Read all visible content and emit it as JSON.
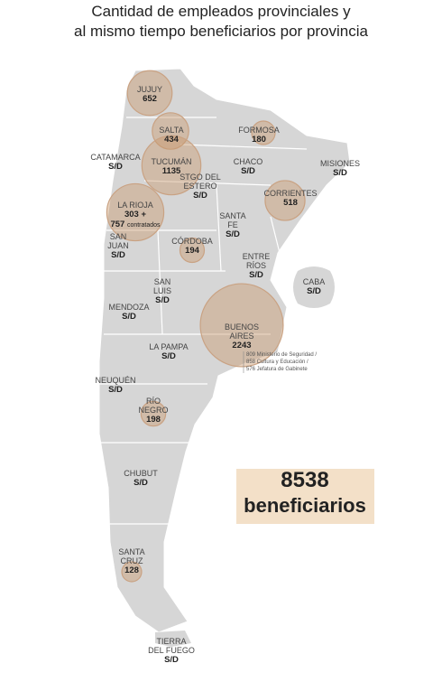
{
  "title": [
    "Cantidad de empleados provinciales y",
    "al mismo tiempo beneficiarios por provincia"
  ],
  "provinces": [
    {
      "name": [
        "JUJUY"
      ],
      "value": 652
    },
    {
      "name": [
        "SALTA"
      ],
      "value": 434
    },
    {
      "name": [
        "FORMOSA"
      ],
      "value": 180
    },
    {
      "name": [
        "CATAMARCA"
      ],
      "value": "S/D"
    },
    {
      "name": [
        "TUCUMÁN"
      ],
      "value": 1135
    },
    {
      "name": [
        "CHACO"
      ],
      "value": "S/D"
    },
    {
      "name": [
        "MISIONES"
      ],
      "value": "S/D"
    },
    {
      "name": [
        "STGO DEL",
        "ESTERO"
      ],
      "value": "S/D"
    },
    {
      "name": [
        "CORRIENTES"
      ],
      "value": 518
    },
    {
      "name": [
        "LA RIOJA"
      ],
      "value": 303,
      "value_label": "303 +",
      "extra": 757,
      "extra_label": "contratados"
    },
    {
      "name": [
        "SANTA",
        "FE"
      ],
      "value": "S/D"
    },
    {
      "name": [
        "SAN",
        "JUAN"
      ],
      "value": "S/D"
    },
    {
      "name": [
        "CÓRDOBA"
      ],
      "value": 194
    },
    {
      "name": [
        "ENTRE",
        "RÍOS"
      ],
      "value": "S/D"
    },
    {
      "name": [
        "CABA"
      ],
      "value": "S/D"
    },
    {
      "name": [
        "SAN",
        "LUIS"
      ],
      "value": "S/D"
    },
    {
      "name": [
        "MENDOZA"
      ],
      "value": "S/D"
    },
    {
      "name": [
        "BUENOS",
        "AIRES"
      ],
      "value": 2243,
      "note": [
        "809 Ministerio de Seguridad /",
        "858 Cultura y Educación /",
        "576 Jefatura de Gabinete"
      ]
    },
    {
      "name": [
        "LA PAMPA"
      ],
      "value": "S/D"
    },
    {
      "name": [
        "NEUQUÉN"
      ],
      "value": "S/D"
    },
    {
      "name": [
        "RÍO",
        "NEGRO"
      ],
      "value": 198
    },
    {
      "name": [
        "CHUBUT"
      ],
      "value": "S/D"
    },
    {
      "name": [
        "SANTA",
        "CRUZ"
      ],
      "value": 128
    },
    {
      "name": [
        "TIERRA",
        "DEL FUEGO"
      ],
      "value": "S/D"
    }
  ],
  "total": {
    "value": 8538,
    "label": "beneficiarios"
  }
}
